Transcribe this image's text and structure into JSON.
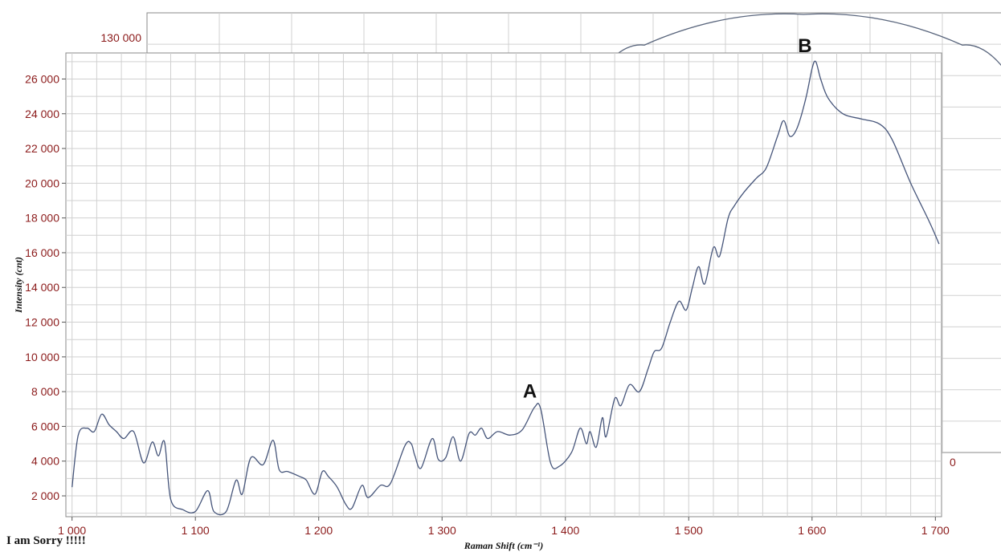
{
  "chart_data": [
    {
      "type": "line",
      "title": "",
      "xlabel": "Raman Shift (cm⁻¹)",
      "ylabel": "Intensity (cnt)",
      "xlim": [
        995,
        1705
      ],
      "ylim": [
        800,
        27500
      ],
      "x_ticks": [
        "1 000",
        "1 100",
        "1 200",
        "1 300",
        "1 400",
        "1 500",
        "1 600",
        "1 700"
      ],
      "x_tick_values": [
        1000,
        1100,
        1200,
        1300,
        1400,
        1500,
        1600,
        1700
      ],
      "y_ticks": [
        "2 000",
        "4 000",
        "6 000",
        "8 000",
        "10 000",
        "12 000",
        "14 000",
        "16 000",
        "18 000",
        "20 000",
        "22 000",
        "24 000",
        "26 000"
      ],
      "y_tick_values": [
        2000,
        4000,
        6000,
        8000,
        10000,
        12000,
        14000,
        16000,
        18000,
        20000,
        22000,
        24000,
        26000
      ],
      "grid": true,
      "annotations": [
        {
          "label": "A",
          "x": 1379,
          "y": 7100
        },
        {
          "label": "B",
          "x": 1602,
          "y": 27000
        }
      ],
      "series": [
        {
          "color": "#46557a",
          "points": [
            [
              1000,
              2500
            ],
            [
              1005,
              5500
            ],
            [
              1012,
              5900
            ],
            [
              1018,
              5700
            ],
            [
              1024,
              6700
            ],
            [
              1030,
              6100
            ],
            [
              1036,
              5700
            ],
            [
              1042,
              5300
            ],
            [
              1050,
              5700
            ],
            [
              1058,
              3900
            ],
            [
              1065,
              5100
            ],
            [
              1070,
              4300
            ],
            [
              1075,
              5100
            ],
            [
              1080,
              1800
            ],
            [
              1090,
              1200
            ],
            [
              1100,
              1100
            ],
            [
              1110,
              2300
            ],
            [
              1115,
              1100
            ],
            [
              1125,
              1100
            ],
            [
              1133,
              2900
            ],
            [
              1138,
              2100
            ],
            [
              1145,
              4200
            ],
            [
              1155,
              3800
            ],
            [
              1163,
              5200
            ],
            [
              1168,
              3500
            ],
            [
              1175,
              3400
            ],
            [
              1185,
              3100
            ],
            [
              1190,
              2900
            ],
            [
              1197,
              2100
            ],
            [
              1203,
              3400
            ],
            [
              1208,
              3100
            ],
            [
              1215,
              2500
            ],
            [
              1222,
              1500
            ],
            [
              1227,
              1300
            ],
            [
              1235,
              2600
            ],
            [
              1240,
              1900
            ],
            [
              1250,
              2600
            ],
            [
              1258,
              2700
            ],
            [
              1270,
              4900
            ],
            [
              1275,
              5000
            ],
            [
              1278,
              4300
            ],
            [
              1283,
              3600
            ],
            [
              1292,
              5300
            ],
            [
              1297,
              4100
            ],
            [
              1303,
              4200
            ],
            [
              1309,
              5400
            ],
            [
              1315,
              4000
            ],
            [
              1322,
              5600
            ],
            [
              1327,
              5500
            ],
            [
              1332,
              5900
            ],
            [
              1337,
              5300
            ],
            [
              1345,
              5700
            ],
            [
              1355,
              5500
            ],
            [
              1365,
              5800
            ],
            [
              1375,
              7100
            ],
            [
              1380,
              7000
            ],
            [
              1388,
              3900
            ],
            [
              1395,
              3700
            ],
            [
              1405,
              4500
            ],
            [
              1412,
              5900
            ],
            [
              1417,
              5000
            ],
            [
              1420,
              5700
            ],
            [
              1425,
              4800
            ],
            [
              1430,
              6500
            ],
            [
              1433,
              5400
            ],
            [
              1440,
              7600
            ],
            [
              1445,
              7200
            ],
            [
              1452,
              8400
            ],
            [
              1460,
              8000
            ],
            [
              1467,
              9300
            ],
            [
              1472,
              10300
            ],
            [
              1478,
              10500
            ],
            [
              1485,
              12000
            ],
            [
              1492,
              13200
            ],
            [
              1498,
              12700
            ],
            [
              1503,
              14000
            ],
            [
              1508,
              15200
            ],
            [
              1513,
              14200
            ],
            [
              1520,
              16300
            ],
            [
              1525,
              15800
            ],
            [
              1532,
              18000
            ],
            [
              1537,
              18700
            ],
            [
              1545,
              19500
            ],
            [
              1555,
              20300
            ],
            [
              1563,
              20900
            ],
            [
              1572,
              22700
            ],
            [
              1577,
              23600
            ],
            [
              1582,
              22700
            ],
            [
              1588,
              23200
            ],
            [
              1595,
              24900
            ],
            [
              1600,
              26600
            ],
            [
              1603,
              27000
            ],
            [
              1607,
              26000
            ],
            [
              1613,
              24900
            ],
            [
              1625,
              24000
            ],
            [
              1640,
              23700
            ],
            [
              1655,
              23400
            ],
            [
              1665,
              22500
            ],
            [
              1680,
              20000
            ],
            [
              1695,
              17800
            ],
            [
              1703,
              16500
            ]
          ]
        }
      ]
    },
    {
      "type": "line",
      "title": "",
      "x_tick_labels": [],
      "y_ticks": [
        "130 000",
        "0"
      ],
      "grid": true,
      "series": [
        {
          "color": "#5a667d",
          "points": [
            [
              0,
              0.7
            ],
            [
              0.17,
              0.93
            ],
            [
              0.5,
              1.0
            ],
            [
              0.83,
              0.93
            ],
            [
              1.0,
              0.7
            ]
          ]
        }
      ]
    }
  ],
  "caption": "I am Sorry !!!!!"
}
